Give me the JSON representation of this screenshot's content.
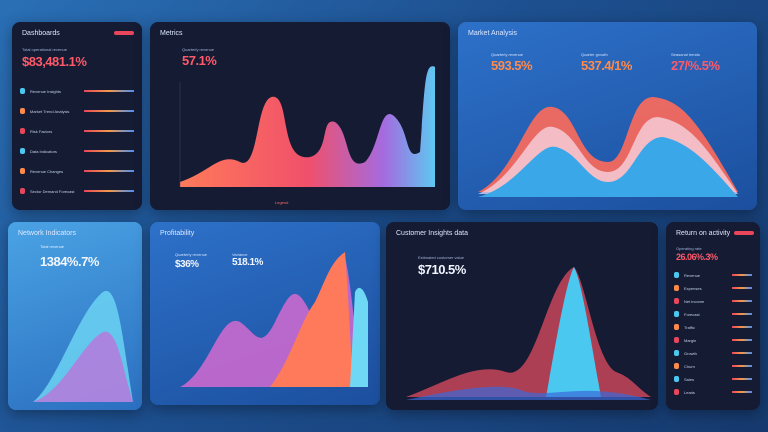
{
  "panels": [
    {
      "title": "Dashboards",
      "caption": "Total operational revenue",
      "value": "$83,481.1%",
      "items": [
        "Revenue Insights",
        "Market Trend Analysis",
        "Risk Factors",
        "Data Indicators",
        "Revenue Changes",
        "Sector Demand Forecast"
      ]
    },
    {
      "title": "Metrics",
      "caption": "Quarterly revenue",
      "value": "57.1%",
      "legend": "Legend"
    },
    {
      "title": "Market Analysis",
      "kpis": [
        {
          "caption": "Quarterly revenue",
          "value": "593.5%"
        },
        {
          "caption": "Quarter growth",
          "value": "537.4/1%"
        },
        {
          "caption": "Seasonal trends",
          "value": "27/%.5%"
        }
      ]
    },
    {
      "title": "Network Indicators",
      "caption": "Total revenue",
      "value": "1384%.7%"
    },
    {
      "title": "Profitability",
      "kpis": [
        {
          "caption": "Quarterly revenue",
          "value": "$36%"
        },
        {
          "caption": "Variance",
          "value": "518.1%"
        }
      ]
    },
    {
      "title": "Customer Insights data",
      "caption": "Estimated customer value",
      "value": "$710.5%"
    },
    {
      "title": "Return on activity",
      "caption": "Operating rate",
      "value": "26.06%.3%",
      "items": [
        "Revenue",
        "Expenses",
        "Net income",
        "Forecast",
        "Traffic",
        "Margin",
        "Growth",
        "Churn",
        "Sales",
        "Leads"
      ]
    }
  ],
  "colors": {
    "accent": "#e8465b",
    "orange": "#ff8a4a",
    "cyan": "#4ac8f0"
  }
}
